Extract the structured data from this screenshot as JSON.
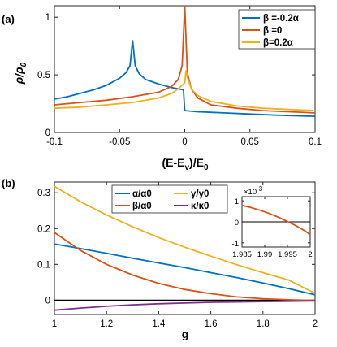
{
  "chart_data": [
    {
      "type": "line",
      "panel_label": "(a)",
      "xlabel_html": "(E-E<tspan font-size='10' dy='4'>v</tspan><tspan dy='-4'>)/E</tspan><tspan font-size='10' dy='4'>0</tspan>",
      "xlabel": "(E-Ev)/E0",
      "ylabel": "ρ/ρ0",
      "xlim": [
        -0.1,
        0.1
      ],
      "ylim": [
        0,
        1.1
      ],
      "xticks": [
        -0.1,
        -0.05,
        0,
        0.05,
        0.1
      ],
      "xtick_labels": [
        "-0.1",
        "-0.05",
        "0",
        "0.05",
        "0.1"
      ],
      "yticks": [
        0,
        0.5,
        1
      ],
      "ytick_labels": [
        "0",
        "0.5",
        "1"
      ],
      "grid": false,
      "legend_position": "top-right",
      "series": [
        {
          "name": "β =-0.2α",
          "color": "#0072BD",
          "points": [
            [
              -0.1,
              0.29
            ],
            [
              -0.09,
              0.31
            ],
            [
              -0.08,
              0.34
            ],
            [
              -0.07,
              0.37
            ],
            [
              -0.06,
              0.41
            ],
            [
              -0.05,
              0.47
            ],
            [
              -0.045,
              0.52
            ],
            [
              -0.042,
              0.58
            ],
            [
              -0.04,
              0.8
            ],
            [
              -0.038,
              0.58
            ],
            [
              -0.035,
              0.51
            ],
            [
              -0.03,
              0.46
            ],
            [
              -0.02,
              0.42
            ],
            [
              -0.01,
              0.39
            ],
            [
              -0.001,
              0.37
            ],
            [
              0.0,
              0.19
            ],
            [
              0.01,
              0.18
            ],
            [
              0.03,
              0.17
            ],
            [
              0.05,
              0.16
            ],
            [
              0.07,
              0.15
            ],
            [
              0.1,
              0.14
            ]
          ]
        },
        {
          "name": "β =0",
          "color": "#D95319",
          "points": [
            [
              -0.1,
              0.24
            ],
            [
              -0.08,
              0.26
            ],
            [
              -0.06,
              0.28
            ],
            [
              -0.04,
              0.31
            ],
            [
              -0.02,
              0.35
            ],
            [
              -0.01,
              0.4
            ],
            [
              -0.005,
              0.46
            ],
            [
              -0.002,
              0.58
            ],
            [
              0.0,
              1.1
            ],
            [
              0.002,
              0.52
            ],
            [
              0.005,
              0.38
            ],
            [
              0.01,
              0.3
            ],
            [
              0.02,
              0.24
            ],
            [
              0.04,
              0.21
            ],
            [
              0.06,
              0.19
            ],
            [
              0.08,
              0.18
            ],
            [
              0.1,
              0.17
            ]
          ]
        },
        {
          "name": "β=0.2α",
          "color": "#EDB120",
          "points": [
            [
              -0.1,
              0.21
            ],
            [
              -0.08,
              0.22
            ],
            [
              -0.06,
              0.24
            ],
            [
              -0.04,
              0.26
            ],
            [
              -0.02,
              0.3
            ],
            [
              -0.01,
              0.34
            ],
            [
              -0.005,
              0.38
            ],
            [
              -0.002,
              0.41
            ],
            [
              0.0,
              0.43
            ],
            [
              0.001,
              0.54
            ],
            [
              0.002,
              0.48
            ],
            [
              0.005,
              0.38
            ],
            [
              0.01,
              0.32
            ],
            [
              0.02,
              0.27
            ],
            [
              0.04,
              0.23
            ],
            [
              0.06,
              0.21
            ],
            [
              0.08,
              0.2
            ],
            [
              0.1,
              0.19
            ]
          ]
        }
      ]
    },
    {
      "type": "line",
      "panel_label": "(b)",
      "xlabel": "g",
      "xlim": [
        1,
        2
      ],
      "ylim": [
        -0.04,
        0.33
      ],
      "xticks": [
        1,
        1.2,
        1.4,
        1.6,
        1.8,
        2
      ],
      "xtick_labels": [
        "1",
        "1.2",
        "1.4",
        "1.6",
        "1.8",
        "2"
      ],
      "yticks": [
        0,
        0.1,
        0.2,
        0.3
      ],
      "ytick_labels": [
        "0",
        "0.1",
        "0.2",
        "0.3"
      ],
      "grid": false,
      "zero_line": true,
      "legend_position": "top-center",
      "series": [
        {
          "name": "α/α0",
          "color": "#0072BD",
          "x": [
            1.0,
            1.1,
            1.2,
            1.3,
            1.4,
            1.5,
            1.6,
            1.7,
            1.8,
            1.9,
            2.0
          ],
          "y": [
            0.157,
            0.144,
            0.131,
            0.117,
            0.104,
            0.091,
            0.077,
            0.063,
            0.048,
            0.032,
            0.015
          ]
        },
        {
          "name": "β/α0",
          "color": "#D95319",
          "x": [
            1.0,
            1.1,
            1.2,
            1.3,
            1.4,
            1.5,
            1.6,
            1.7,
            1.8,
            1.9,
            2.0
          ],
          "y": [
            0.189,
            0.139,
            0.1,
            0.07,
            0.047,
            0.03,
            0.018,
            0.009,
            0.004,
            0.001,
            -0.001
          ]
        },
        {
          "name": "γ/γ0",
          "color": "#EDB120",
          "x": [
            1.0,
            1.1,
            1.2,
            1.3,
            1.4,
            1.5,
            1.6,
            1.7,
            1.8,
            1.9,
            2.0
          ],
          "y": [
            0.318,
            0.275,
            0.238,
            0.205,
            0.175,
            0.148,
            0.123,
            0.099,
            0.077,
            0.056,
            0.019
          ]
        },
        {
          "name": "κ/κ0",
          "color": "#7E2F8E",
          "x": [
            1.0,
            1.1,
            1.2,
            1.3,
            1.4,
            1.5,
            1.6,
            1.7,
            1.8,
            1.9,
            2.0
          ],
          "y": [
            -0.028,
            -0.022,
            -0.017,
            -0.013,
            -0.01,
            -0.008,
            -0.006,
            -0.005,
            -0.004,
            -0.003,
            -0.002
          ]
        }
      ],
      "inset": {
        "exponent_label": "×10",
        "exponent_power": "-3",
        "xlim": [
          1.985,
          2
        ],
        "ylim": [
          -1.2,
          1.2
        ],
        "xticks": [
          1.985,
          1.99,
          1.995,
          2
        ],
        "xtick_labels": [
          "1.985",
          "1.99",
          "1.995",
          "2"
        ],
        "yticks": [
          -1,
          0,
          1
        ],
        "ytick_labels": [
          "-1",
          "0",
          "1"
        ],
        "zero_line": true,
        "series": {
          "name": "β/α0",
          "color": "#D95319",
          "x": [
            1.985,
            1.987,
            1.989,
            1.991,
            1.993,
            1.995,
            1.997,
            1.999,
            2.0
          ],
          "y": [
            0.78,
            0.68,
            0.55,
            0.4,
            0.22,
            0.02,
            -0.2,
            -0.45,
            -0.62
          ]
        }
      }
    }
  ]
}
